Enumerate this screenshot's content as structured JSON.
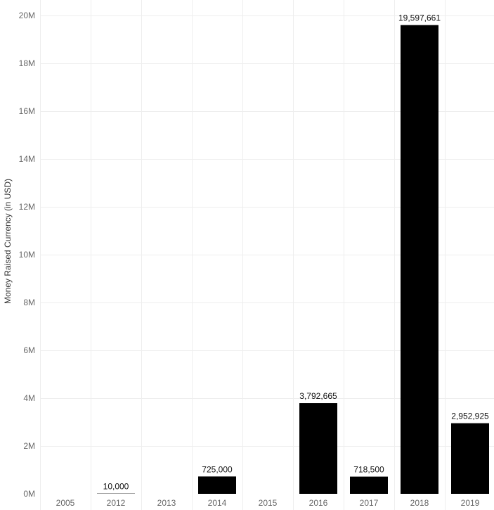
{
  "chart_data": {
    "type": "bar",
    "categories": [
      "2005",
      "2012",
      "2013",
      "2014",
      "2015",
      "2016",
      "2017",
      "2018",
      "2019"
    ],
    "values": [
      0,
      10000,
      0,
      725000,
      0,
      3792665,
      718500,
      19597661,
      2952925
    ],
    "data_labels": [
      "",
      "10,000",
      "",
      "725,000",
      "",
      "3,792,665",
      "718,500",
      "19,597,661",
      "2,952,925"
    ],
    "ylabel": "Money Raised Currency (in USD)",
    "xlabel": "",
    "title": "",
    "ylim": [
      0,
      20000000
    ],
    "y_ticks": [
      0,
      2000000,
      4000000,
      6000000,
      8000000,
      10000000,
      12000000,
      14000000,
      16000000,
      18000000,
      20000000
    ],
    "y_tick_labels": [
      "0M",
      "2M",
      "4M",
      "6M",
      "8M",
      "10M",
      "12M",
      "14M",
      "16M",
      "18M",
      "20M"
    ],
    "grid": true,
    "legend": "none",
    "colors": {
      "bar": "#000000",
      "grid": "#eeeeee",
      "tick_text": "#666666"
    }
  }
}
